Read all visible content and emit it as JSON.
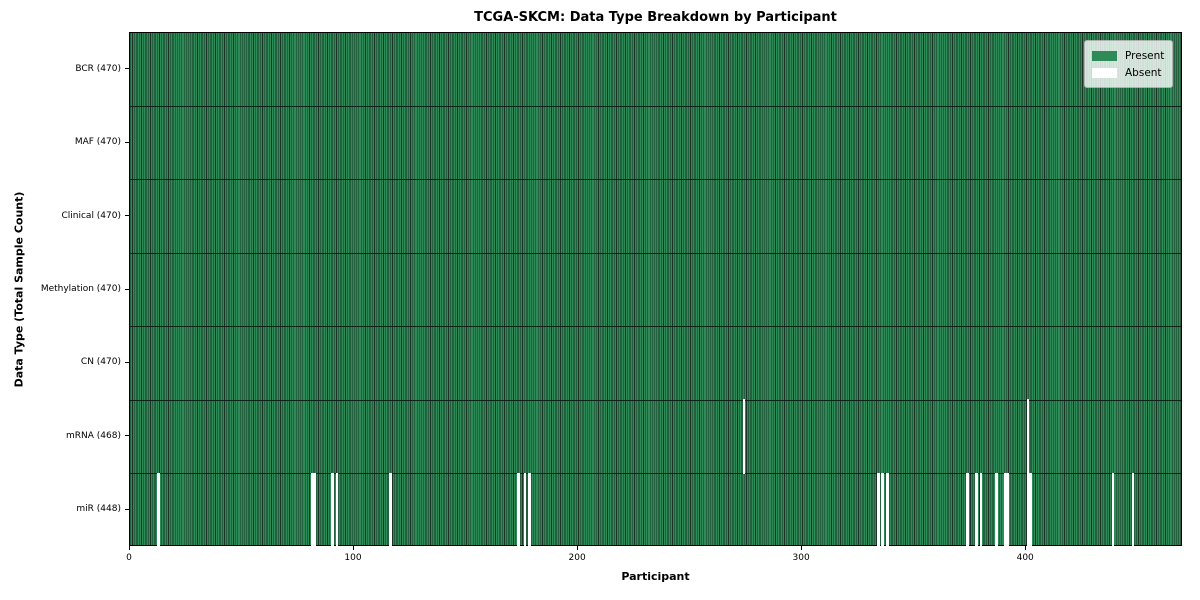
{
  "chart_data": {
    "type": "heatmap",
    "title": "TCGA-SKCM: Data Type Breakdown by Participant",
    "xlabel": "Participant",
    "ylabel": "Data Type (Total Sample Count)",
    "n_participants": 470,
    "x_ticks": [
      0,
      100,
      200,
      300,
      400
    ],
    "grid": false,
    "legend_position": "upper right",
    "legend": [
      {
        "label": "Present",
        "color": "#2e8b57"
      },
      {
        "label": "Absent",
        "color": "#ffffff"
      }
    ],
    "rows": [
      {
        "label": "BCR (470)",
        "data_type": "BCR",
        "count": 470,
        "absent": []
      },
      {
        "label": "MAF (470)",
        "data_type": "MAF",
        "count": 470,
        "absent": []
      },
      {
        "label": "Clinical (470)",
        "data_type": "Clinical",
        "count": 470,
        "absent": []
      },
      {
        "label": "Methylation (470)",
        "data_type": "Methylation",
        "count": 470,
        "absent": []
      },
      {
        "label": "CN (470)",
        "data_type": "CN",
        "count": 470,
        "absent": []
      },
      {
        "label": "mRNA (468)",
        "data_type": "mRNA",
        "count": 468,
        "absent": [
          274,
          401
        ]
      },
      {
        "label": "miR (448)",
        "data_type": "miR",
        "count": 448,
        "absent": [
          12,
          81,
          82,
          90,
          92,
          116,
          173,
          176,
          178,
          334,
          336,
          338,
          374,
          378,
          380,
          387,
          391,
          392,
          401,
          402,
          439,
          448
        ]
      }
    ],
    "colors": {
      "present": "#2e8b57",
      "absent": "#ffffff",
      "bar_edge": "#173424",
      "row_separator": "#0e2418",
      "spine": "#000000"
    }
  }
}
